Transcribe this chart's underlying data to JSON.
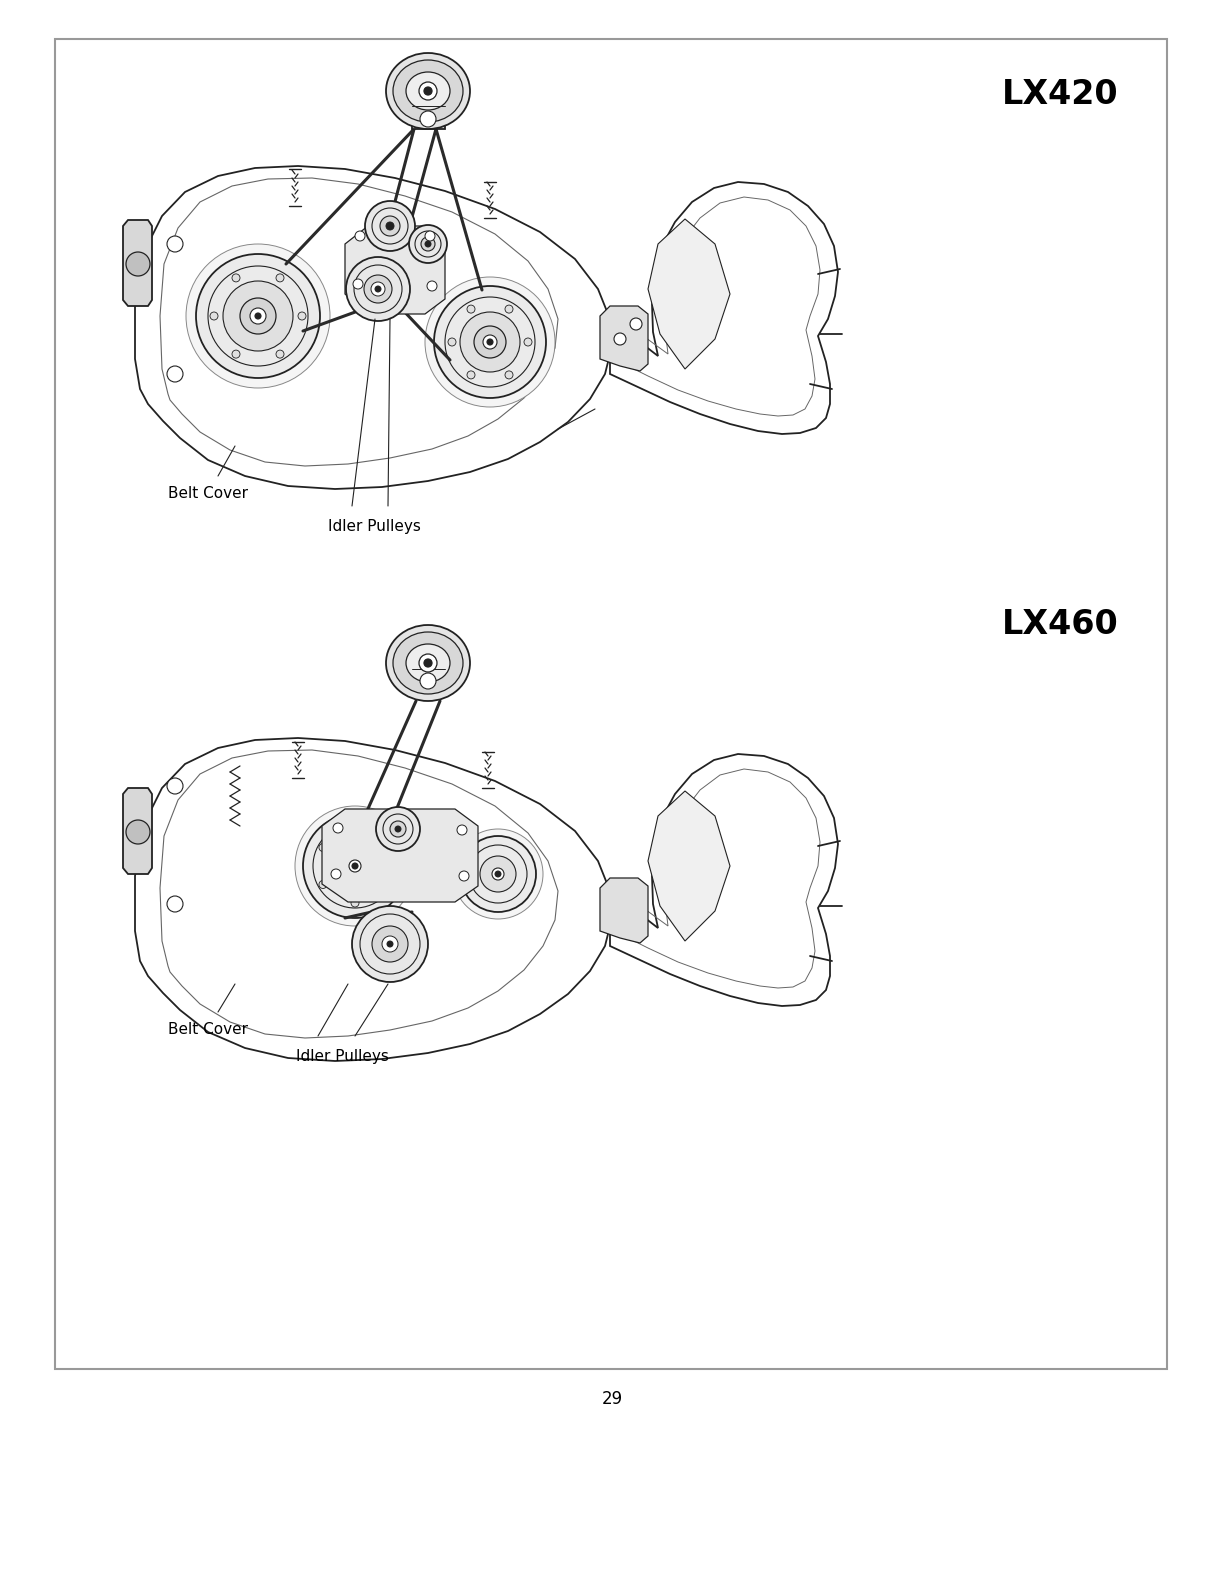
{
  "page_bg": "#ffffff",
  "border_color": "#999999",
  "line_color": "#222222",
  "label_color": "#000000",
  "title1": "LX420",
  "title2": "LX460",
  "label_belt_cover": "Belt Cover",
  "label_idler_pulleys": "Idler Pulleys",
  "page_number": "29",
  "title_fontsize": 24,
  "label_fontsize": 11,
  "page_num_fontsize": 12
}
